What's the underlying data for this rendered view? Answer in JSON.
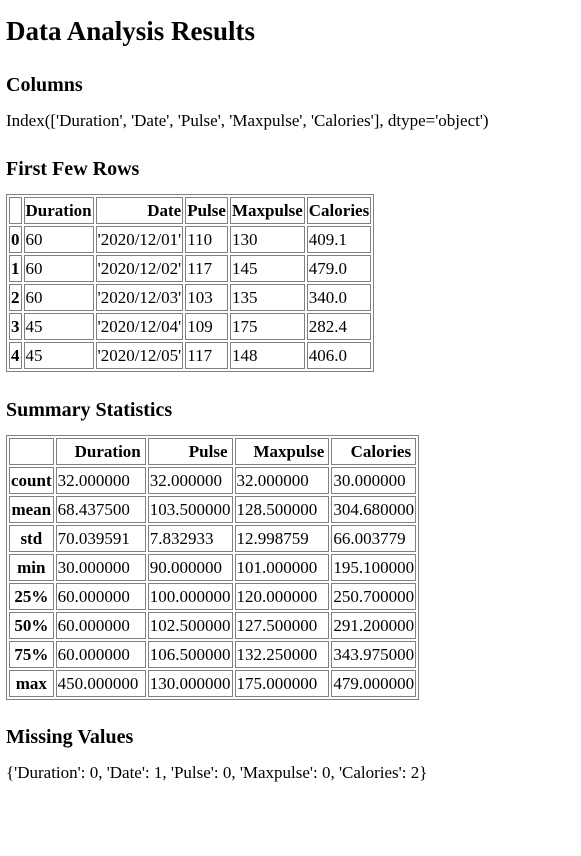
{
  "title": "Data Analysis Results",
  "columns_section": {
    "heading": "Columns",
    "text": "Index(['Duration', 'Date', 'Pulse', 'Maxpulse', 'Calories'], dtype='object')"
  },
  "first_rows_section": {
    "heading": "First Few Rows",
    "headers": [
      "",
      "Duration",
      "Date",
      "Pulse",
      "Maxpulse",
      "Calories"
    ],
    "rows": [
      {
        "index": "0",
        "cells": [
          "60",
          "'2020/12/01'",
          "110",
          "130",
          "409.1"
        ]
      },
      {
        "index": "1",
        "cells": [
          "60",
          "'2020/12/02'",
          "117",
          "145",
          "479.0"
        ]
      },
      {
        "index": "2",
        "cells": [
          "60",
          "'2020/12/03'",
          "103",
          "135",
          "340.0"
        ]
      },
      {
        "index": "3",
        "cells": [
          "45",
          "'2020/12/04'",
          "109",
          "175",
          "282.4"
        ]
      },
      {
        "index": "4",
        "cells": [
          "45",
          "'2020/12/05'",
          "117",
          "148",
          "406.0"
        ]
      }
    ]
  },
  "summary_section": {
    "heading": "Summary Statistics",
    "headers": [
      "",
      "Duration",
      "Pulse",
      "Maxpulse",
      "Calories"
    ],
    "rows": [
      {
        "index": "count",
        "cells": [
          "32.000000",
          "32.000000",
          "32.000000",
          "30.000000"
        ]
      },
      {
        "index": "mean",
        "cells": [
          "68.437500",
          "103.500000",
          "128.500000",
          "304.680000"
        ]
      },
      {
        "index": "std",
        "cells": [
          "70.039591",
          "7.832933",
          "12.998759",
          "66.003779"
        ]
      },
      {
        "index": "min",
        "cells": [
          "30.000000",
          "90.000000",
          "101.000000",
          "195.100000"
        ]
      },
      {
        "index": "25%",
        "cells": [
          "60.000000",
          "100.000000",
          "120.000000",
          "250.700000"
        ]
      },
      {
        "index": "50%",
        "cells": [
          "60.000000",
          "102.500000",
          "127.500000",
          "291.200000"
        ]
      },
      {
        "index": "75%",
        "cells": [
          "60.000000",
          "106.500000",
          "132.250000",
          "343.975000"
        ]
      },
      {
        "index": "max",
        "cells": [
          "450.000000",
          "130.000000",
          "175.000000",
          "479.000000"
        ]
      }
    ]
  },
  "missing_section": {
    "heading": "Missing Values",
    "text": "{'Duration': 0, 'Date': 1, 'Pulse': 0, 'Maxpulse': 0, 'Calories': 2}"
  }
}
